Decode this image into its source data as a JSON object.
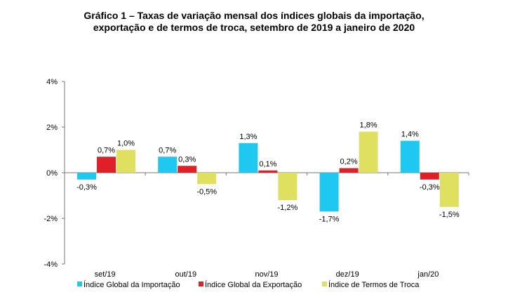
{
  "chart_data": {
    "type": "bar",
    "title_line1": "Gráfico 1 – Taxas de variação mensal dos índices globais da importação,",
    "title_line2": "exportação e de termos de troca, setembro de 2019 a janeiro de 2020",
    "categories": [
      "set/19",
      "out/19",
      "nov/19",
      "dez/19",
      "jan/20"
    ],
    "series": [
      {
        "name": "Índice Global da Importação",
        "color": "#1EC8F0",
        "values": [
          -0.3,
          0.7,
          1.3,
          -1.7,
          1.4
        ],
        "labels": [
          "-0,3%",
          "0,7%",
          "1,3%",
          "-1,7%",
          "1,4%"
        ]
      },
      {
        "name": "Índice Global da Exportação",
        "color": "#E02028",
        "values": [
          0.7,
          0.3,
          0.1,
          0.2,
          -0.3
        ],
        "labels": [
          "0,7%",
          "0,3%",
          "0,1%",
          "0,2%",
          "-0,3%"
        ]
      },
      {
        "name": "Índice de Termos de Troca",
        "color": "#E0E060",
        "values": [
          1.0,
          -0.5,
          -1.2,
          1.8,
          -1.5
        ],
        "labels": [
          "1,0%",
          "-0,5%",
          "-1,2%",
          "1,8%",
          "-1,5%"
        ]
      }
    ],
    "yticks": [
      4,
      2,
      0,
      -2,
      -4
    ],
    "ytick_labels": [
      "4%",
      "2%",
      "0%",
      "-2%",
      "-4%"
    ],
    "ylim": [
      -4,
      4
    ],
    "legend_position": "bottom",
    "grid": false
  }
}
